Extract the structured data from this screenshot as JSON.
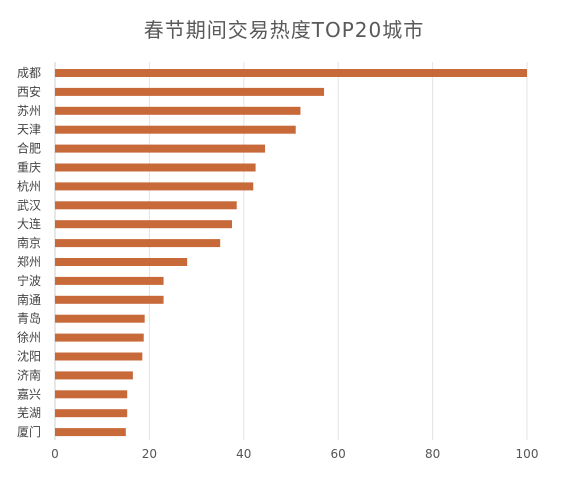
{
  "chart_data": {
    "type": "bar",
    "orientation": "horizontal",
    "title": "春节期间交易热度TOP20城市",
    "xlabel": "",
    "ylabel": "",
    "categories": [
      "成都",
      "西安",
      "苏州",
      "天津",
      "合肥",
      "重庆",
      "杭州",
      "武汉",
      "大连",
      "南京",
      "郑州",
      "宁波",
      "南通",
      "青岛",
      "徐州",
      "沈阳",
      "济南",
      "嘉兴",
      "芜湖",
      "厦门"
    ],
    "values": [
      100,
      57,
      52,
      51,
      44.5,
      42.5,
      42,
      38.5,
      37.5,
      35,
      28,
      23,
      23,
      19,
      18.8,
      18.5,
      16.5,
      15.3,
      15.3,
      15
    ],
    "xlim": [
      0,
      100
    ],
    "xticks": [
      "0",
      "20",
      "40",
      "60",
      "80",
      "100"
    ],
    "grid": "vertical",
    "legend": "none",
    "bar_color": "#C8693A",
    "grid_color": "#E3E3E3"
  }
}
